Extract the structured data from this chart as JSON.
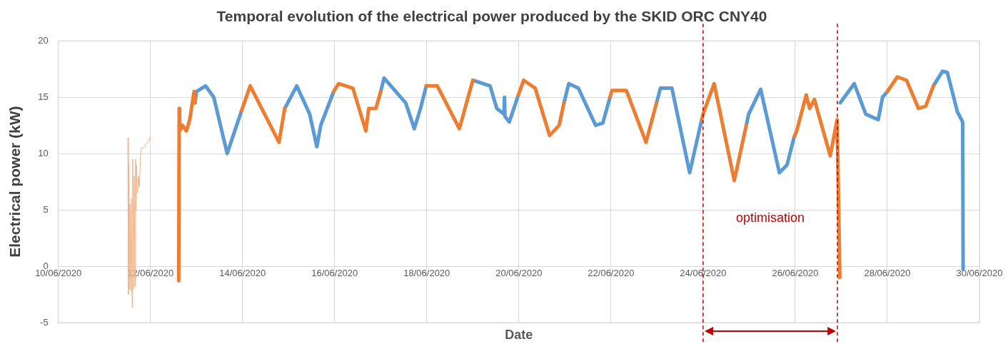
{
  "chart_data": {
    "type": "line",
    "title": "Temporal evolution of the electrical power produced by the SKID ORC CNY40",
    "xlabel": "Date",
    "ylabel": "Electrical power (kW)",
    "xlim": [
      "2020-06-10",
      "2020-06-30"
    ],
    "xticks": [
      {
        "value": "2020-06-10",
        "label": "10/06/2020"
      },
      {
        "value": "2020-06-12",
        "label": "12/06/2020"
      },
      {
        "value": "2020-06-14",
        "label": "14/06/2020"
      },
      {
        "value": "2020-06-16",
        "label": "16/06/2020"
      },
      {
        "value": "2020-06-18",
        "label": "18/06/2020"
      },
      {
        "value": "2020-06-20",
        "label": "20/06/2020"
      },
      {
        "value": "2020-06-22",
        "label": "22/06/2020"
      },
      {
        "value": "2020-06-24",
        "label": "24/06/2020"
      },
      {
        "value": "2020-06-26",
        "label": "26/06/2020"
      },
      {
        "value": "2020-06-28",
        "label": "28/06/2020"
      },
      {
        "value": "2020-06-30",
        "label": "30/06/2020"
      }
    ],
    "ylim": [
      -5,
      20
    ],
    "yticks": [
      -5,
      0,
      5,
      10,
      15,
      20
    ],
    "grid": true,
    "legend": false,
    "line_style": "solid",
    "series": [
      {
        "color": "#f4b183",
        "x": [
          "2020-06-11T12:15",
          "2020-06-11T12:30",
          "2020-06-11T12:45",
          "2020-06-11T13:00",
          "2020-06-11T13:15",
          "2020-06-11T13:45",
          "2020-06-11T14:00",
          "2020-06-11T14:30",
          "2020-06-11T14:45",
          "2020-06-11T15:15",
          "2020-06-11T15:30",
          "2020-06-11T16:00",
          "2020-06-11T16:15",
          "2020-06-11T16:30",
          "2020-06-11T16:45",
          "2020-06-11T17:15",
          "2020-06-11T17:45",
          "2020-06-11T18:15",
          "2020-06-11T18:45",
          "2020-06-11T19:15",
          "2020-06-11T20:30",
          "2020-06-11T21:30",
          "2020-06-11T22:45",
          "2020-06-12T00:00"
        ],
        "values": [
          11.4,
          -2.5,
          9,
          -2,
          5.5,
          -2.2,
          6,
          -3.7,
          9.5,
          -2,
          8,
          -1.8,
          9.5,
          5,
          9,
          6.5,
          8,
          7,
          9.5,
          10.5,
          10.5,
          10.8,
          11,
          11.5
        ]
      },
      {
        "color": "#ed7d31",
        "x": [
          "2020-06-12T14:45",
          "2020-06-12T15:00",
          "2020-06-12T15:15",
          "2020-06-12T16:45",
          "2020-06-12T18:45",
          "2020-06-12T20:30",
          "2020-06-12T22:45",
          "2020-06-12T23:15",
          "2020-06-13T12:00",
          "2020-06-13T23:30",
          "2020-06-14T04:00",
          "2020-06-14T19:00",
          "2020-06-14T22:00",
          "2020-06-15T12:00",
          "2020-06-15T23:30",
          "2020-06-16T02:00",
          "2020-06-16T09:30",
          "2020-06-16T16:15",
          "2020-06-16T17:45",
          "2020-06-16T21:30",
          "2020-06-17T00:00",
          "2020-06-17T12:00",
          "2020-06-17T23:45",
          "2020-06-18T05:30",
          "2020-06-18T17:00",
          "2020-06-19T00:00",
          "2020-06-19T12:00",
          "2020-06-19T23:45",
          "2020-06-20T02:30",
          "2020-06-20T08:30",
          "2020-06-20T16:00",
          "2020-06-20T21:00",
          "2020-06-20T23:30",
          "2020-06-21T12:00",
          "2020-06-21T23:30",
          "2020-06-22T00:30",
          "2020-06-22T08:00",
          "2020-06-22T18:15",
          "2020-06-22T23:45",
          "2020-06-23T12:00",
          "2020-06-23T23:15",
          "2020-06-24T00:00",
          "2020-06-24T05:45",
          "2020-06-24T16:15",
          "2020-06-24T22:30",
          "2020-06-25T12:00",
          "2020-06-25T23:30",
          "2020-06-26T00:45",
          "2020-06-26T05:45",
          "2020-06-26T07:30",
          "2020-06-26T10:00",
          "2020-06-26T18:15",
          "2020-06-26T21:50",
          "2020-06-26T23:15",
          "2020-06-27T12:00",
          "2020-06-28T00:00",
          "2020-06-28T05:15",
          "2020-06-28T10:00",
          "2020-06-28T16:15",
          "2020-06-28T20:00",
          "2020-06-29T00:00"
        ],
        "values": [
          -1.3,
          14,
          12,
          12.5,
          12,
          13,
          15.5,
          14.5,
          null,
          13.8,
          16,
          11,
          14,
          null,
          15.5,
          16.2,
          15.8,
          12,
          14,
          14,
          15.5,
          null,
          16,
          16,
          12.2,
          16.5,
          null,
          15.2,
          16.5,
          15.8,
          11.6,
          12.5,
          14.5,
          null,
          15,
          15.6,
          15.6,
          11,
          14.5,
          null,
          13,
          13.5,
          16.2,
          7.6,
          12.5,
          null,
          11.5,
          12,
          15.2,
          14,
          14.8,
          9.8,
          13,
          -1,
          null,
          15.5,
          16.8,
          16.5,
          14,
          14.2,
          16
        ]
      },
      {
        "color": "#5b9bd5",
        "x": [
          "2020-06-12T23:15",
          "2020-06-13T00:00",
          "2020-06-13T04:45",
          "2020-06-13T09:00",
          "2020-06-13T16:00",
          "2020-06-13T23:30",
          "2020-06-14T12:00",
          "2020-06-14T22:00",
          "2020-06-15T04:15",
          "2020-06-15T11:00",
          "2020-06-15T14:45",
          "2020-06-15T16:45",
          "2020-06-15T23:30",
          "2020-06-16T12:00",
          "2020-06-17T00:00",
          "2020-06-17T01:45",
          "2020-06-17T13:00",
          "2020-06-17T17:30",
          "2020-06-17T20:45",
          "2020-06-17T23:45",
          "2020-06-18T12:00",
          "2020-06-19T00:00",
          "2020-06-19T09:00",
          "2020-06-19T12:30",
          "2020-06-19T16:15",
          "2020-06-19T16:30",
          "2020-06-19T16:45",
          "2020-06-19T19:00",
          "2020-06-19T23:45",
          "2020-06-20T12:00",
          "2020-06-20T23:30",
          "2020-06-21T02:00",
          "2020-06-21T07:00",
          "2020-06-21T16:00",
          "2020-06-21T19:45",
          "2020-06-21T23:30",
          "2020-06-22T12:00",
          "2020-06-22T23:45",
          "2020-06-23T01:45",
          "2020-06-23T07:45",
          "2020-06-23T17:00",
          "2020-06-23T23:15",
          "2020-06-24T12:00",
          "2020-06-24T22:30",
          "2020-06-24T23:45",
          "2020-06-25T06:00",
          "2020-06-25T15:45",
          "2020-06-25T19:45",
          "2020-06-25T23:30",
          "2020-06-26T12:00",
          "2020-06-26T23:30",
          "2020-06-27T06:45",
          "2020-06-27T12:45",
          "2020-06-27T19:15",
          "2020-06-27T21:30",
          "2020-06-28T00:00",
          "2020-06-28T12:00",
          "2020-06-29T00:00",
          "2020-06-29T04:45",
          "2020-06-29T07:15",
          "2020-06-29T12:30",
          "2020-06-29T15:15",
          "2020-06-29T15:30"
        ],
        "values": [
          14.5,
          15.5,
          16,
          15,
          10,
          13.8,
          null,
          14,
          16,
          13.5,
          10.6,
          12.5,
          15.5,
          null,
          15.5,
          16.7,
          14.5,
          12.2,
          14,
          16,
          null,
          16.5,
          16,
          14,
          13.5,
          15,
          13.3,
          12.8,
          15.2,
          null,
          14.5,
          16.2,
          15.8,
          12.5,
          12.7,
          15,
          null,
          14.5,
          15.8,
          15.8,
          8.3,
          13,
          null,
          12.5,
          13.5,
          15.7,
          8.3,
          9,
          11.5,
          null,
          14.5,
          16.2,
          13.5,
          13,
          15,
          15.5,
          null,
          16,
          17.3,
          17.2,
          13.7,
          12.8,
          -0.3
        ]
      }
    ],
    "ref_lines": [
      {
        "axis": "x",
        "value": "2020-06-24T00:00",
        "color": "#c00000",
        "line_style": "dashed"
      },
      {
        "axis": "x",
        "value": "2020-06-26T22:00",
        "color": "#c00000",
        "line_style": "dashed"
      }
    ],
    "annotations": [
      "optimisation"
    ]
  }
}
